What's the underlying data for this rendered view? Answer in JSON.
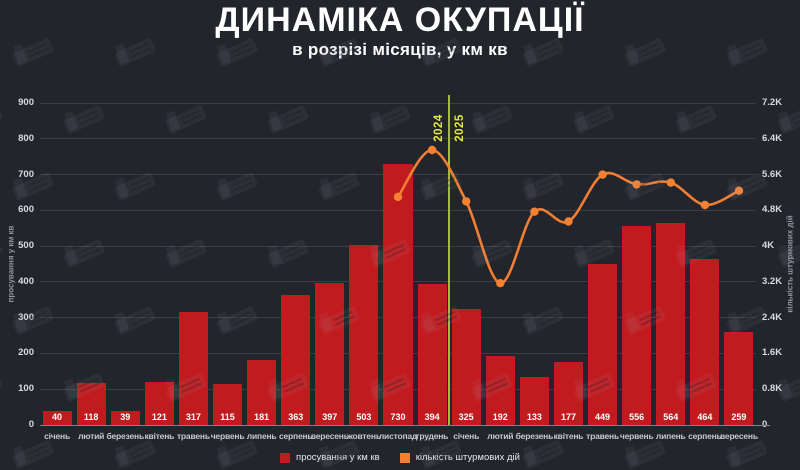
{
  "title": "ДИНАМІКА ОКУПАЦІЇ",
  "subtitle": "в розрізі місяців, у км кв",
  "watermark": {
    "name": "deepstate-logo",
    "count_note": "tiled diagonal badges"
  },
  "colors": {
    "background": "#22252c",
    "bar": "#c21b1f",
    "line": "#f17e33",
    "point": "#f58233",
    "divider": "#a6bd2e",
    "year_label": "#e7eb3d",
    "grid": "#3a3e46",
    "baseline": "#7e8289",
    "tick_text": "#d9dadd",
    "month_text": "#c6c8cc"
  },
  "left_axis": {
    "title": "просування у км кв",
    "ticks": [
      "0",
      "100",
      "200",
      "300",
      "400",
      "500",
      "600",
      "700",
      "800",
      "900"
    ],
    "max": 900
  },
  "right_axis": {
    "title": "кількість штурмових дій",
    "ticks": [
      "0",
      "0.8K",
      "1.6K",
      "2.4K",
      "3.2K",
      "4K",
      "4.8K",
      "5.6K",
      "6.4K",
      "7.2K"
    ],
    "max": 7200
  },
  "year_divider": {
    "after_category_index": 11,
    "left_label": "2024",
    "right_label": "2025"
  },
  "legend": {
    "items": [
      {
        "label": "просування у км кв",
        "color": "#c21b1f"
      },
      {
        "label": "кількість штурмових дій",
        "color": "#f17e33"
      }
    ]
  },
  "chart_data": {
    "type": "combo",
    "title": "ДИНАМІКА ОКУПАЦІЇ",
    "subtitle": "в розрізі місяців, у км кв",
    "categories": [
      "січень",
      "лютий",
      "березень",
      "квітень",
      "травень",
      "червень",
      "липень",
      "серпень",
      "вересень",
      "жовтень",
      "листопад",
      "грудень",
      "січень",
      "лютий",
      "березень",
      "квітень",
      "травень",
      "червень",
      "липень",
      "серпень",
      "вересень"
    ],
    "category_years": [
      2024,
      2024,
      2024,
      2024,
      2024,
      2024,
      2024,
      2024,
      2024,
      2024,
      2024,
      2024,
      2025,
      2025,
      2025,
      2025,
      2025,
      2025,
      2025,
      2025,
      2025
    ],
    "series": [
      {
        "name": "просування у км кв",
        "type": "bar",
        "axis": "left",
        "values": [
          40,
          118,
          39,
          121,
          317,
          115,
          181,
          363,
          397,
          503,
          730,
          394,
          325,
          192,
          133,
          177,
          449,
          556,
          564,
          464,
          259
        ]
      },
      {
        "name": "кількість штурмових дій",
        "type": "line",
        "axis": "right",
        "values": [
          null,
          null,
          null,
          null,
          null,
          null,
          null,
          null,
          null,
          null,
          5100,
          6150,
          5000,
          3170,
          4770,
          4550,
          5600,
          5380,
          5420,
          4920,
          5240
        ]
      }
    ],
    "ylabel_left": "просування у км кв",
    "ylabel_right": "кількість штурмових дій",
    "ylim_left": [
      0,
      900
    ],
    "ylim_right": [
      0,
      7200
    ],
    "grid": true,
    "legend_position": "bottom",
    "year_divider_labels": [
      "2024",
      "2025"
    ]
  }
}
